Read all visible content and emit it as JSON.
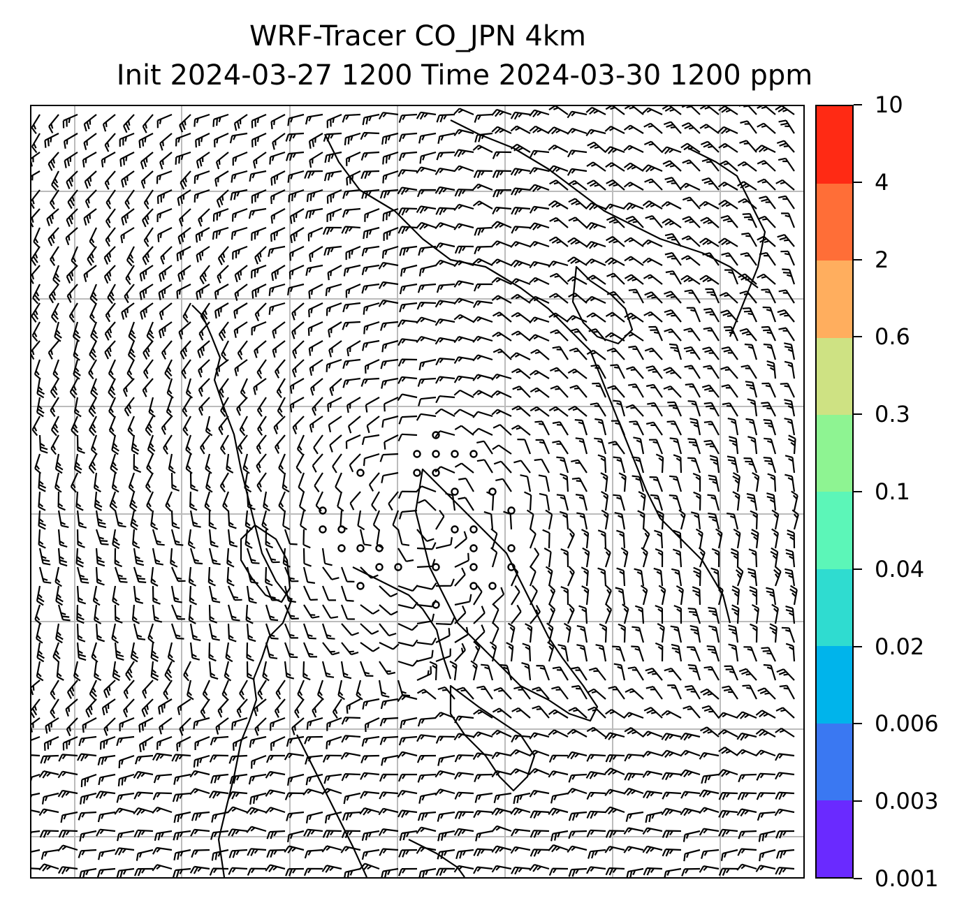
{
  "title": {
    "line1": "WRF-Tracer CO_JPN 4km",
    "line2": "Init 2024-03-27 1200 Time 2024-03-30 1200 ppm"
  },
  "colorbar": {
    "levels": [
      "0.001",
      "0.003",
      "0.006",
      "0.02",
      "0.04",
      "0.1",
      "0.3",
      "0.6",
      "2",
      "4",
      "10"
    ],
    "colors": [
      "#6a2aff",
      "#3a78f2",
      "#00b4eb",
      "#2fdcd0",
      "#5cf6b8",
      "#8ef492",
      "#cee283",
      "#ffae5e",
      "#ff6e37",
      "#ff2a14"
    ]
  },
  "map": {
    "grid_color": "#bbbbbb",
    "coastline_color": "#000000",
    "barb_color": "#000000"
  }
}
